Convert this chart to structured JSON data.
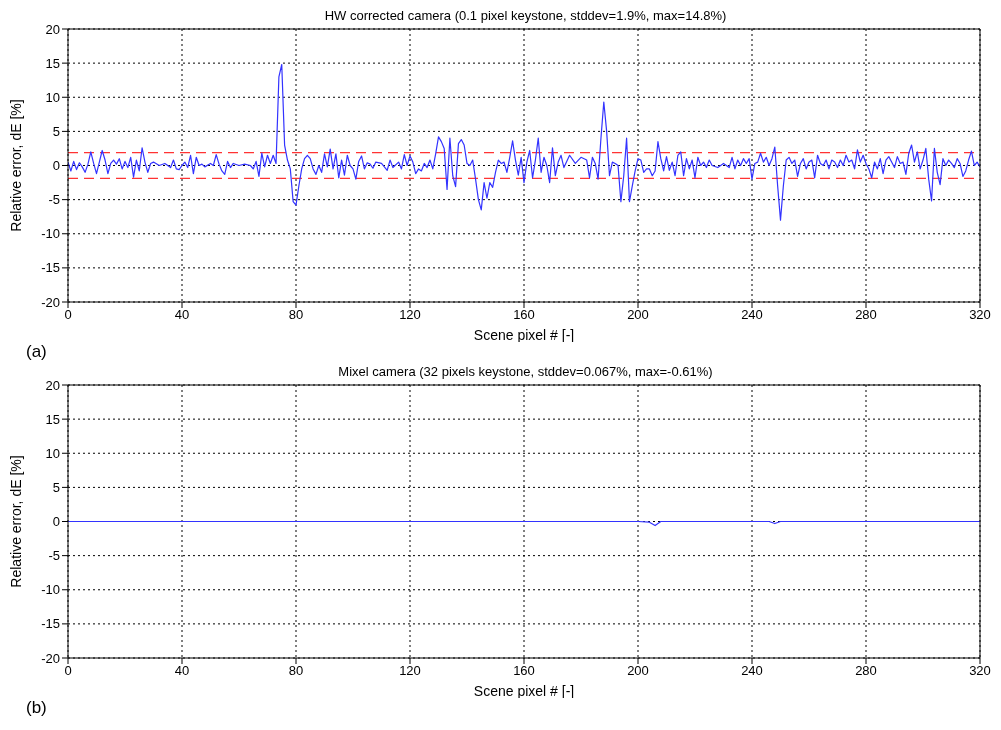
{
  "chart_data": [
    {
      "type": "line",
      "title": "HW corrected camera   (0.1 pixel keystone, stddev=1.9%, max=14.8%)",
      "xlabel": "Scene pixel # [-]",
      "ylabel": "Relative error, dE  [%]",
      "annotations": [
        "(a)"
      ],
      "color": "#3333ff",
      "x": [
        0,
        1,
        2,
        3,
        4,
        5,
        6,
        7,
        8,
        9,
        10,
        11,
        12,
        13,
        14,
        15,
        16,
        17,
        18,
        19,
        20,
        21,
        22,
        23,
        24,
        25,
        26,
        27,
        28,
        29,
        30,
        32,
        34,
        36,
        37,
        38,
        39,
        40,
        41,
        42,
        43,
        44,
        45,
        46,
        47,
        48,
        50,
        51,
        52,
        53,
        54,
        55,
        56,
        57,
        58,
        60,
        62,
        64,
        65,
        66,
        67,
        68,
        69,
        70,
        71,
        72,
        73,
        74,
        75,
        76,
        77,
        78,
        79,
        80,
        81,
        82,
        83,
        84,
        85,
        86,
        87,
        88,
        89,
        90,
        91,
        92,
        93,
        94,
        95,
        96,
        97,
        98,
        99,
        100,
        101,
        102,
        103,
        104,
        105,
        106,
        107,
        108,
        110,
        112,
        113,
        114,
        116,
        117,
        118,
        119,
        120,
        121,
        122,
        123,
        124,
        125,
        126,
        127,
        128,
        129,
        130,
        131,
        132,
        133,
        134,
        135,
        136,
        137,
        138,
        139,
        140,
        141,
        142,
        143,
        144,
        145,
        146,
        147,
        148,
        149,
        150,
        151,
        152,
        153,
        154,
        155,
        156,
        157,
        158,
        159,
        160,
        161,
        162,
        163,
        164,
        165,
        166,
        167,
        168,
        169,
        170,
        171,
        172,
        173,
        174,
        176,
        178,
        180,
        182,
        183,
        184,
        185,
        186,
        187,
        188,
        189,
        190,
        191,
        192,
        193,
        194,
        195,
        196,
        197,
        198,
        199,
        200,
        201,
        202,
        203,
        204,
        205,
        206,
        207,
        208,
        209,
        210,
        211,
        212,
        213,
        214,
        215,
        216,
        217,
        218,
        219,
        220,
        221,
        222,
        223,
        224,
        225,
        226,
        228,
        230,
        232,
        233,
        234,
        235,
        236,
        237,
        238,
        239,
        240,
        241,
        242,
        243,
        244,
        245,
        246,
        247,
        248,
        249,
        250,
        251,
        252,
        253,
        254,
        255,
        256,
        257,
        258,
        259,
        260,
        261,
        262,
        263,
        264,
        265,
        266,
        267,
        268,
        269,
        270,
        271,
        272,
        273,
        274,
        275,
        276,
        277,
        278,
        279,
        280,
        281,
        282,
        283,
        284,
        285,
        286,
        287,
        288,
        289,
        290,
        291,
        292,
        293,
        294,
        295,
        296,
        297,
        298,
        299,
        300,
        301,
        302,
        303,
        304,
        305,
        306,
        307,
        308,
        309,
        310,
        311,
        312,
        313,
        314,
        315,
        316,
        317,
        318,
        319,
        320
      ],
      "values": [
        0.5,
        -0.8,
        0.6,
        -0.6,
        0.4,
        -0.2,
        -1,
        0.2,
        2,
        0.3,
        -1.2,
        0.5,
        2.2,
        0.8,
        -1.2,
        0.3,
        0.8,
        0.2,
        1,
        -0.5,
        0.6,
        -0.3,
        1.2,
        -1.7,
        0.8,
        -0.8,
        2.6,
        0.5,
        -1,
        0.3,
        0.5,
        0,
        0.3,
        -0.3,
        0.8,
        -0.5,
        -0.6,
        0,
        0.5,
        -0.3,
        1.5,
        -1.2,
        1.2,
        0,
        0.2,
        -0.2,
        0.3,
        0,
        1.6,
        0.2,
        -0.8,
        -1.3,
        0.6,
        -0.3,
        0.3,
        0,
        0.2,
        0,
        -0.5,
        0.6,
        -1.6,
        1.8,
        -0.2,
        1.5,
        0.3,
        1.5,
        0.3,
        13,
        14.8,
        3,
        0.8,
        -0.5,
        -5.3,
        -5.8,
        -3,
        -0.5,
        1,
        1.5,
        1,
        -0.5,
        -1.3,
        0,
        -1,
        1.7,
        -0.2,
        2.4,
        -0.5,
        1.7,
        -1.8,
        0.8,
        -1.4,
        1.5,
        0,
        -0.5,
        -2,
        0.6,
        1.4,
        -0.5,
        0.4,
        0.2,
        -0.4,
        0.5,
        0.3,
        -0.7,
        0.8,
        -0.3,
        0.5,
        -0.5,
        1.6,
        0,
        1.4,
        0.5,
        -1.2,
        -0.5,
        -0.8,
        0.3,
        -0.3,
        0.8,
        -0.5,
        1.7,
        4.2,
        3.5,
        2.5,
        -3.5,
        4,
        -1.5,
        -3.1,
        3.2,
        3.8,
        3,
        0.3,
        0,
        0.8,
        -2,
        -5,
        -6.5,
        -2.5,
        -4.8,
        -2.5,
        -3.2,
        -1,
        0.8,
        0.3,
        0.5,
        -1,
        1.2,
        3.6,
        0.8,
        -1.4,
        1.2,
        -2.5,
        0.5,
        2.2,
        -1.8,
        0.8,
        4,
        -1,
        1.2,
        0,
        -2.5,
        2.6,
        -1.5,
        0.5,
        1.5,
        -0.3,
        1.5,
        0.3,
        1.2,
        0.8,
        -1.8,
        1.2,
        0.3,
        -2,
        4,
        9.3,
        5,
        -1.5,
        0.5,
        0.3,
        0,
        -5.3,
        -1.5,
        4,
        -5.3,
        -3,
        -0.8,
        1,
        0.8,
        -1,
        -0.5,
        -0.5,
        -1.5,
        -0.8,
        3.5,
        1,
        -0.8,
        1.3,
        -0.7,
        0.5,
        -1.5,
        1.5,
        2,
        -1.5,
        1,
        -0.5,
        0.8,
        -1.8,
        1.2,
        0,
        0.5,
        -0.3,
        0.8,
        0,
        -0.3,
        0.3,
        -0.3,
        1.2,
        -0.5,
        0.8,
        0,
        1,
        0.3,
        1,
        -2,
        0.3,
        0.5,
        1.8,
        0.5,
        1.2,
        0,
        1,
        2.7,
        -3,
        -8,
        -3,
        0.8,
        1.2,
        0.3,
        0.8,
        -1.6,
        0.3,
        1,
        -0.5,
        0.5,
        0.8,
        -1.8,
        1.5,
        0.3,
        0,
        0.8,
        -0.5,
        0.8,
        0.5,
        -0.3,
        0.8,
        0,
        1.5,
        0.5,
        0.8,
        -0.5,
        2.3,
        0.5,
        1.5,
        0.3,
        -0.5,
        -1.8,
        0.5,
        -0.5,
        1,
        -1.2,
        0.8,
        1.3,
        0.5,
        -0.3,
        1.3,
        0.3,
        0.5,
        -1.3,
        1.8,
        3,
        0.5,
        2,
        -0.5,
        0.8,
        2.5,
        -2,
        -5.2,
        2.5,
        -1,
        -2.8,
        1,
        0,
        0.8,
        0.3,
        -0.3,
        1,
        0.3,
        -1.6,
        -0.8,
        0.8,
        2.1,
        0,
        0.5,
        -0.2
      ],
      "xlim": [
        0,
        320
      ],
      "xticks": [
        0,
        40,
        80,
        120,
        160,
        200,
        240,
        280,
        320
      ],
      "ylim": [
        -20,
        20
      ],
      "yticks": [
        -20,
        -15,
        -10,
        -5,
        0,
        5,
        10,
        15,
        20
      ],
      "grid": true,
      "ref_lines": [
        {
          "axis": "y",
          "value": 1.9,
          "color": "#ff3333",
          "line_style": "dashed"
        },
        {
          "axis": "y",
          "value": -1.9,
          "color": "#ff3333",
          "line_style": "dashed"
        }
      ]
    },
    {
      "type": "line",
      "title": "Mixel camera   (32 pixels keystone, stddev=0.067%, max=-0.61%)",
      "xlabel": "Scene pixel # [-]",
      "ylabel": "Relative error, dE  [%]",
      "annotations": [
        "(b)"
      ],
      "color": "#3333ff",
      "x": [
        0,
        40,
        80,
        120,
        160,
        200,
        204,
        206,
        208,
        240,
        246,
        248,
        250,
        280,
        320
      ],
      "values": [
        0,
        0,
        0,
        0,
        0,
        0,
        -0.1,
        -0.6,
        0,
        0,
        0,
        -0.3,
        0,
        0,
        0
      ],
      "xlim": [
        0,
        320
      ],
      "xticks": [
        0,
        40,
        80,
        120,
        160,
        200,
        240,
        280,
        320
      ],
      "ylim": [
        -20,
        20
      ],
      "yticks": [
        -20,
        -15,
        -10,
        -5,
        0,
        5,
        10,
        15,
        20
      ],
      "grid": true
    }
  ]
}
